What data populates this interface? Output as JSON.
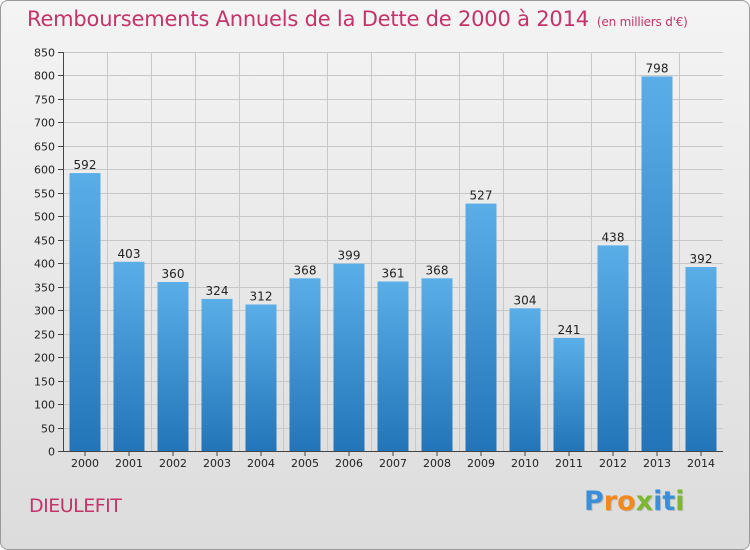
{
  "chart_data": {
    "type": "bar",
    "title": "Remboursements Annuels de la Dette de 2000 à 2014",
    "subtitle": "(en milliers d'€)",
    "xlabel": "",
    "ylabel": "",
    "ylim": [
      0,
      850
    ],
    "yticks": [
      0,
      50,
      100,
      150,
      200,
      250,
      300,
      350,
      400,
      450,
      500,
      550,
      600,
      650,
      700,
      750,
      800,
      850
    ],
    "categories": [
      "2000",
      "2001",
      "2002",
      "2003",
      "2004",
      "2005",
      "2006",
      "2007",
      "2008",
      "2009",
      "2010",
      "2011",
      "2012",
      "2013",
      "2014"
    ],
    "values": [
      592,
      403,
      360,
      324,
      312,
      368,
      399,
      361,
      368,
      527,
      304,
      241,
      438,
      798,
      392
    ],
    "grid": true,
    "bar_color_top": "#5aaee8",
    "bar_color_bottom": "#2275b8"
  },
  "place_name": "DIEULEFIT",
  "logo": {
    "text": "Proxiti",
    "letters": [
      "P",
      "r",
      "o",
      "x",
      "i",
      "t",
      "i"
    ],
    "colors": [
      "#3a8fd8",
      "#f08a1c",
      "#f08a1c",
      "#7cb82f",
      "#3a8fd8",
      "#3a8fd8",
      "#7cb82f"
    ]
  },
  "colors": {
    "title": "#c4336a",
    "grid": "#c8c8c8",
    "axis": "#444444",
    "text": "#222222"
  }
}
